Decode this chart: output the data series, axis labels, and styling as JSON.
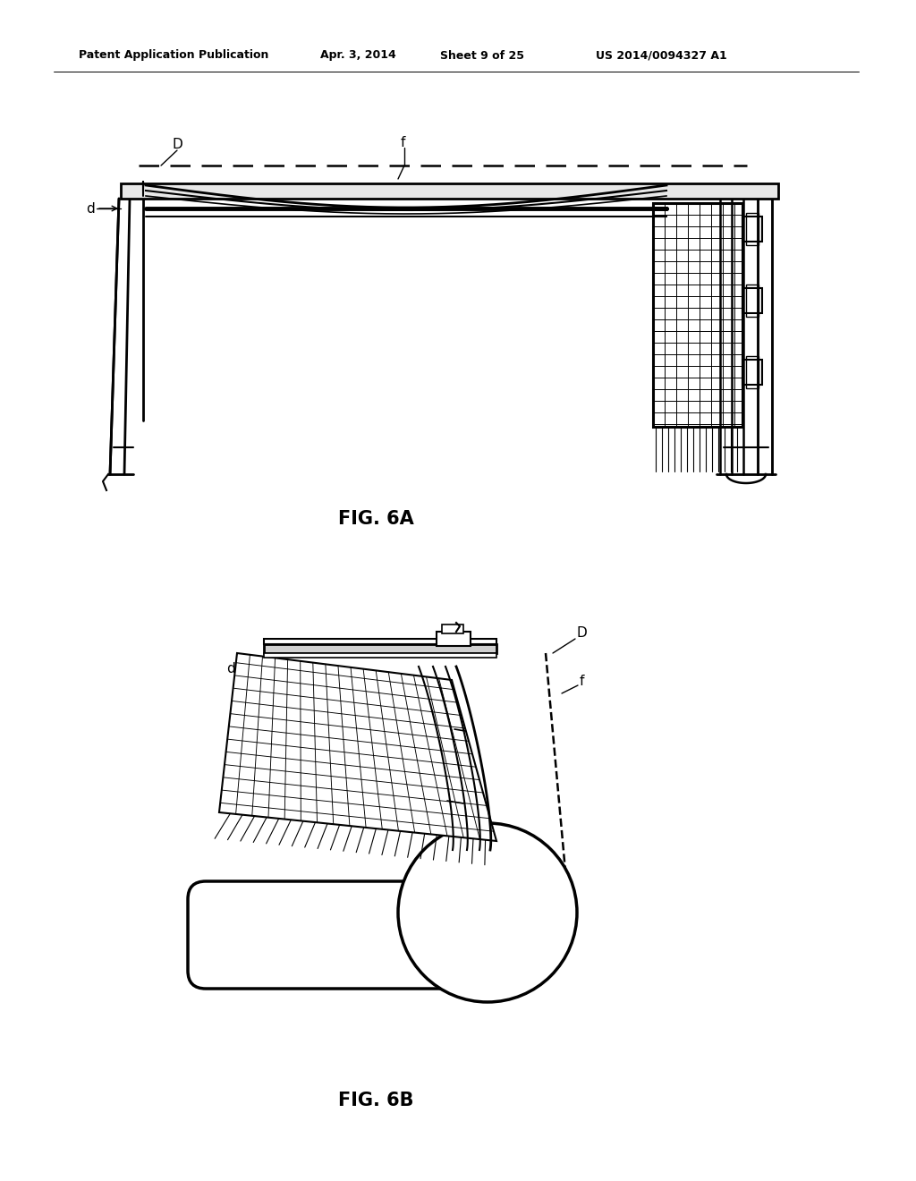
{
  "bg_color": "#ffffff",
  "line_color": "#000000",
  "header_text": "Patent Application Publication",
  "header_date": "Apr. 3, 2014",
  "header_sheet": "Sheet 9 of 25",
  "header_patent": "US 2014/0094327 A1",
  "fig6a_label": "FIG. 6A",
  "fig6b_label": "FIG. 6B"
}
